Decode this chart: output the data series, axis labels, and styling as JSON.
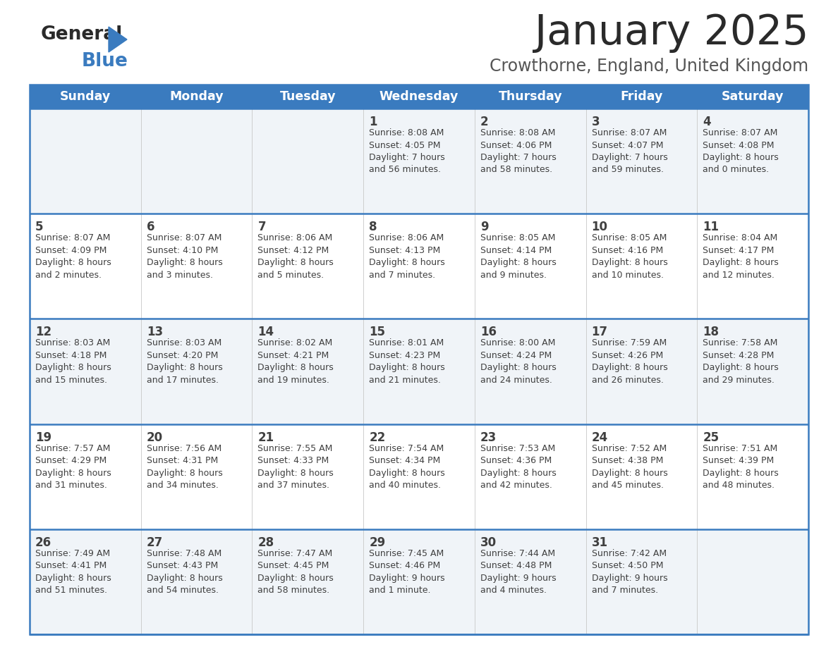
{
  "title": "January 2025",
  "subtitle": "Crowthorne, England, United Kingdom",
  "header_color": "#3a7bbf",
  "header_text_color": "#ffffff",
  "bg_color": "#ffffff",
  "row0_color": "#f0f4f8",
  "row1_color": "#ffffff",
  "row2_color": "#f0f4f8",
  "row3_color": "#ffffff",
  "row4_color": "#f0f4f8",
  "border_color": "#3a7bbf",
  "text_color": "#404040",
  "days_of_week": [
    "Sunday",
    "Monday",
    "Tuesday",
    "Wednesday",
    "Thursday",
    "Friday",
    "Saturday"
  ],
  "weeks": [
    [
      {
        "day": "",
        "info": ""
      },
      {
        "day": "",
        "info": ""
      },
      {
        "day": "",
        "info": ""
      },
      {
        "day": "1",
        "info": "Sunrise: 8:08 AM\nSunset: 4:05 PM\nDaylight: 7 hours\nand 56 minutes."
      },
      {
        "day": "2",
        "info": "Sunrise: 8:08 AM\nSunset: 4:06 PM\nDaylight: 7 hours\nand 58 minutes."
      },
      {
        "day": "3",
        "info": "Sunrise: 8:07 AM\nSunset: 4:07 PM\nDaylight: 7 hours\nand 59 minutes."
      },
      {
        "day": "4",
        "info": "Sunrise: 8:07 AM\nSunset: 4:08 PM\nDaylight: 8 hours\nand 0 minutes."
      }
    ],
    [
      {
        "day": "5",
        "info": "Sunrise: 8:07 AM\nSunset: 4:09 PM\nDaylight: 8 hours\nand 2 minutes."
      },
      {
        "day": "6",
        "info": "Sunrise: 8:07 AM\nSunset: 4:10 PM\nDaylight: 8 hours\nand 3 minutes."
      },
      {
        "day": "7",
        "info": "Sunrise: 8:06 AM\nSunset: 4:12 PM\nDaylight: 8 hours\nand 5 minutes."
      },
      {
        "day": "8",
        "info": "Sunrise: 8:06 AM\nSunset: 4:13 PM\nDaylight: 8 hours\nand 7 minutes."
      },
      {
        "day": "9",
        "info": "Sunrise: 8:05 AM\nSunset: 4:14 PM\nDaylight: 8 hours\nand 9 minutes."
      },
      {
        "day": "10",
        "info": "Sunrise: 8:05 AM\nSunset: 4:16 PM\nDaylight: 8 hours\nand 10 minutes."
      },
      {
        "day": "11",
        "info": "Sunrise: 8:04 AM\nSunset: 4:17 PM\nDaylight: 8 hours\nand 12 minutes."
      }
    ],
    [
      {
        "day": "12",
        "info": "Sunrise: 8:03 AM\nSunset: 4:18 PM\nDaylight: 8 hours\nand 15 minutes."
      },
      {
        "day": "13",
        "info": "Sunrise: 8:03 AM\nSunset: 4:20 PM\nDaylight: 8 hours\nand 17 minutes."
      },
      {
        "day": "14",
        "info": "Sunrise: 8:02 AM\nSunset: 4:21 PM\nDaylight: 8 hours\nand 19 minutes."
      },
      {
        "day": "15",
        "info": "Sunrise: 8:01 AM\nSunset: 4:23 PM\nDaylight: 8 hours\nand 21 minutes."
      },
      {
        "day": "16",
        "info": "Sunrise: 8:00 AM\nSunset: 4:24 PM\nDaylight: 8 hours\nand 24 minutes."
      },
      {
        "day": "17",
        "info": "Sunrise: 7:59 AM\nSunset: 4:26 PM\nDaylight: 8 hours\nand 26 minutes."
      },
      {
        "day": "18",
        "info": "Sunrise: 7:58 AM\nSunset: 4:28 PM\nDaylight: 8 hours\nand 29 minutes."
      }
    ],
    [
      {
        "day": "19",
        "info": "Sunrise: 7:57 AM\nSunset: 4:29 PM\nDaylight: 8 hours\nand 31 minutes."
      },
      {
        "day": "20",
        "info": "Sunrise: 7:56 AM\nSunset: 4:31 PM\nDaylight: 8 hours\nand 34 minutes."
      },
      {
        "day": "21",
        "info": "Sunrise: 7:55 AM\nSunset: 4:33 PM\nDaylight: 8 hours\nand 37 minutes."
      },
      {
        "day": "22",
        "info": "Sunrise: 7:54 AM\nSunset: 4:34 PM\nDaylight: 8 hours\nand 40 minutes."
      },
      {
        "day": "23",
        "info": "Sunrise: 7:53 AM\nSunset: 4:36 PM\nDaylight: 8 hours\nand 42 minutes."
      },
      {
        "day": "24",
        "info": "Sunrise: 7:52 AM\nSunset: 4:38 PM\nDaylight: 8 hours\nand 45 minutes."
      },
      {
        "day": "25",
        "info": "Sunrise: 7:51 AM\nSunset: 4:39 PM\nDaylight: 8 hours\nand 48 minutes."
      }
    ],
    [
      {
        "day": "26",
        "info": "Sunrise: 7:49 AM\nSunset: 4:41 PM\nDaylight: 8 hours\nand 51 minutes."
      },
      {
        "day": "27",
        "info": "Sunrise: 7:48 AM\nSunset: 4:43 PM\nDaylight: 8 hours\nand 54 minutes."
      },
      {
        "day": "28",
        "info": "Sunrise: 7:47 AM\nSunset: 4:45 PM\nDaylight: 8 hours\nand 58 minutes."
      },
      {
        "day": "29",
        "info": "Sunrise: 7:45 AM\nSunset: 4:46 PM\nDaylight: 9 hours\nand 1 minute."
      },
      {
        "day": "30",
        "info": "Sunrise: 7:44 AM\nSunset: 4:48 PM\nDaylight: 9 hours\nand 4 minutes."
      },
      {
        "day": "31",
        "info": "Sunrise: 7:42 AM\nSunset: 4:50 PM\nDaylight: 9 hours\nand 7 minutes."
      },
      {
        "day": "",
        "info": ""
      }
    ]
  ],
  "row_colors": [
    "#f0f4f8",
    "#ffffff",
    "#f0f4f8",
    "#ffffff",
    "#f0f4f8"
  ]
}
